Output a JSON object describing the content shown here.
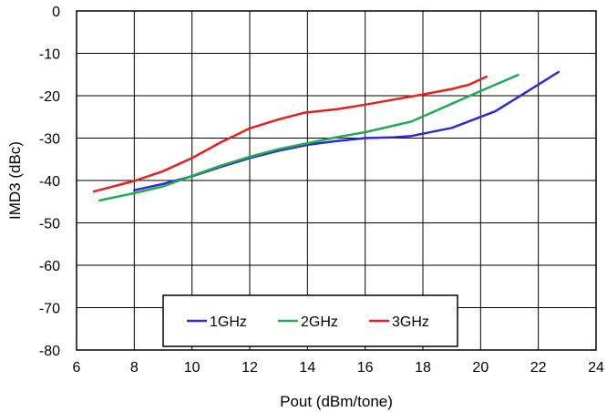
{
  "chart_data": {
    "type": "line",
    "title": "",
    "xlabel": "Pout (dBm/tone)",
    "ylabel": "IMD3 (dBc)",
    "xlim": [
      6,
      24
    ],
    "ylim": [
      -80,
      0
    ],
    "xticks": [
      6,
      8,
      10,
      12,
      14,
      16,
      18,
      20,
      22,
      24
    ],
    "yticks": [
      0,
      -10,
      -20,
      -30,
      -40,
      -50,
      -60,
      -70,
      -80
    ],
    "grid": true,
    "legend_position": "bottom-center",
    "series": [
      {
        "name": "1GHz",
        "color": "#2b2bd6",
        "x": [
          8.0,
          9.0,
          10.0,
          11.0,
          12.0,
          13.0,
          14.0,
          15.0,
          16.0,
          17.0,
          17.6,
          19.0,
          20.5,
          21.5,
          22.7
        ],
        "y": [
          -42.3,
          -40.8,
          -39.0,
          -36.8,
          -34.7,
          -33.0,
          -31.6,
          -30.7,
          -30.0,
          -29.8,
          -29.5,
          -27.6,
          -23.7,
          -19.5,
          -14.4
        ]
      },
      {
        "name": "2GHz",
        "color": "#22aa55",
        "x": [
          6.8,
          8.0,
          9.0,
          10.0,
          11.0,
          12.0,
          13.0,
          14.0,
          15.0,
          16.0,
          17.6,
          19.0,
          20.0,
          21.3
        ],
        "y": [
          -44.7,
          -43.0,
          -41.4,
          -38.9,
          -36.5,
          -34.4,
          -32.6,
          -31.2,
          -29.8,
          -28.6,
          -26.1,
          -21.9,
          -18.9,
          -15.1
        ]
      },
      {
        "name": "3GHz",
        "color": "#e52020",
        "x": [
          6.6,
          8.0,
          9.0,
          10.0,
          11.0,
          12.0,
          13.0,
          13.9,
          15.0,
          16.0,
          17.0,
          18.0,
          19.0,
          19.6,
          20.2
        ],
        "y": [
          -42.6,
          -40.1,
          -37.8,
          -34.7,
          -31.0,
          -27.7,
          -25.6,
          -24.0,
          -23.2,
          -22.1,
          -20.9,
          -19.7,
          -18.4,
          -17.4,
          -15.5
        ]
      }
    ]
  }
}
